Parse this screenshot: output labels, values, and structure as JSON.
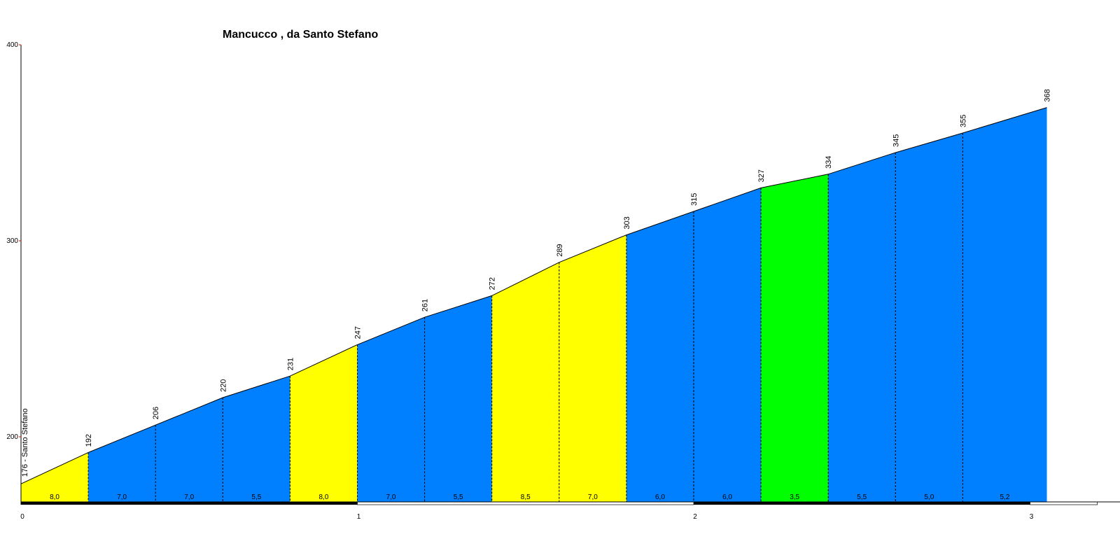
{
  "chart_data": {
    "type": "area",
    "title": "Mancucco , da Santo Stefano",
    "xlabel": "",
    "ylabel": "",
    "xlim": [
      0,
      3.2
    ],
    "ylim": [
      170,
      400
    ],
    "x_ticks": [
      0,
      1,
      2,
      3
    ],
    "x_tick_labels": [
      "0",
      "1",
      "2",
      "3"
    ],
    "y_ticks": [
      200,
      300,
      400
    ],
    "y_tick_labels": [
      "200",
      "300",
      "400"
    ],
    "start_label": "176 - Santo Stefano",
    "points": [
      {
        "x": 0.0,
        "y": 176,
        "label": ""
      },
      {
        "x": 0.2,
        "y": 192,
        "label": "192"
      },
      {
        "x": 0.4,
        "y": 206,
        "label": "206"
      },
      {
        "x": 0.6,
        "y": 220,
        "label": "220"
      },
      {
        "x": 0.8,
        "y": 231,
        "label": "231"
      },
      {
        "x": 1.0,
        "y": 247,
        "label": "247"
      },
      {
        "x": 1.2,
        "y": 261,
        "label": "261"
      },
      {
        "x": 1.4,
        "y": 272,
        "label": "272"
      },
      {
        "x": 1.6,
        "y": 289,
        "label": "289"
      },
      {
        "x": 1.8,
        "y": 303,
        "label": "303"
      },
      {
        "x": 2.0,
        "y": 315,
        "label": "315"
      },
      {
        "x": 2.2,
        "y": 327,
        "label": "327"
      },
      {
        "x": 2.4,
        "y": 334,
        "label": "334"
      },
      {
        "x": 2.6,
        "y": 345,
        "label": "345"
      },
      {
        "x": 2.8,
        "y": 355,
        "label": "355"
      },
      {
        "x": 3.05,
        "y": 368,
        "label": "368"
      }
    ],
    "segments": [
      {
        "from": 0.0,
        "to": 0.2,
        "gradient": "8,0",
        "color": "#ffff00"
      },
      {
        "from": 0.2,
        "to": 0.4,
        "gradient": "7,0",
        "color": "#0080ff"
      },
      {
        "from": 0.4,
        "to": 0.6,
        "gradient": "7,0",
        "color": "#0080ff"
      },
      {
        "from": 0.6,
        "to": 0.8,
        "gradient": "5,5",
        "color": "#0080ff"
      },
      {
        "from": 0.8,
        "to": 1.0,
        "gradient": "8,0",
        "color": "#ffff00"
      },
      {
        "from": 1.0,
        "to": 1.2,
        "gradient": "7,0",
        "color": "#0080ff"
      },
      {
        "from": 1.2,
        "to": 1.4,
        "gradient": "5,5",
        "color": "#0080ff"
      },
      {
        "from": 1.4,
        "to": 1.6,
        "gradient": "8,5",
        "color": "#ffff00"
      },
      {
        "from": 1.6,
        "to": 1.8,
        "gradient": "7,0",
        "color": "#ffff00"
      },
      {
        "from": 1.8,
        "to": 2.0,
        "gradient": "6,0",
        "color": "#0080ff"
      },
      {
        "from": 2.0,
        "to": 2.2,
        "gradient": "6,0",
        "color": "#0080ff"
      },
      {
        "from": 2.2,
        "to": 2.4,
        "gradient": "3,5",
        "color": "#00ff00"
      },
      {
        "from": 2.4,
        "to": 2.6,
        "gradient": "5,5",
        "color": "#0080ff"
      },
      {
        "from": 2.6,
        "to": 2.8,
        "gradient": "5,0",
        "color": "#0080ff"
      },
      {
        "from": 2.8,
        "to": 3.05,
        "gradient": "5,2",
        "color": "#0080ff"
      }
    ],
    "km_bands": [
      {
        "from": 0,
        "to": 1,
        "color": "#000000"
      },
      {
        "from": 1,
        "to": 2,
        "color": "#ffffff"
      },
      {
        "from": 2,
        "to": 3,
        "color": "#000000"
      },
      {
        "from": 3,
        "to": 3.2,
        "color": "#ffffff"
      }
    ],
    "grid": false,
    "legend": "none"
  }
}
